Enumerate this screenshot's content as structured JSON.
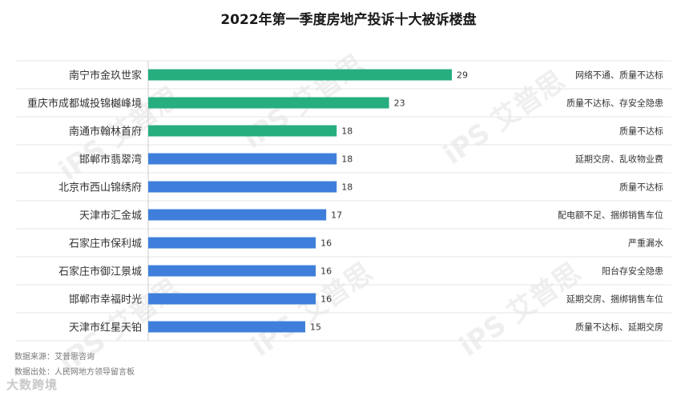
{
  "title": "2022年第一季度房地产投诉十大被诉楼盘",
  "source": "数据来源：艾普思咨询",
  "origin": "数据出处：人民网地方领导留言板",
  "brand": "大数跨境",
  "watermark": "iPS 艾普思",
  "colors": {
    "green": "#27ae7f",
    "blue": "#3f7fdb",
    "grid": "#e6e6e6"
  },
  "chart_data": {
    "type": "bar",
    "orientation": "horizontal",
    "title": "2022年第一季度房地产投诉十大被诉楼盘",
    "categories": [
      "南宁市金玖世家",
      "重庆市成都城投锦樾峰境",
      "南通市翰林首府",
      "邯郸市翡翠湾",
      "北京市西山锦绣府",
      "天津市汇金城",
      "石家庄市保利城",
      "石家庄市御江景城",
      "邯郸市幸福时光",
      "天津市红星天铂"
    ],
    "values": [
      29,
      23,
      18,
      18,
      18,
      17,
      16,
      16,
      16,
      15
    ],
    "bar_colors": [
      "green",
      "green",
      "green",
      "blue",
      "blue",
      "blue",
      "blue",
      "blue",
      "blue",
      "blue"
    ],
    "notes": [
      "网络不通、质量不达标",
      "质量不达标、存安全隐患",
      "质量不达标",
      "延期交房、乱收物业费",
      "质量不达标",
      "配电额不足、捆绑销售车位",
      "严重漏水",
      "阳台存安全隐患",
      "延期交房、捆绑销售车位",
      "质量不达标、延期交房"
    ],
    "xlim": [
      0,
      29
    ]
  }
}
